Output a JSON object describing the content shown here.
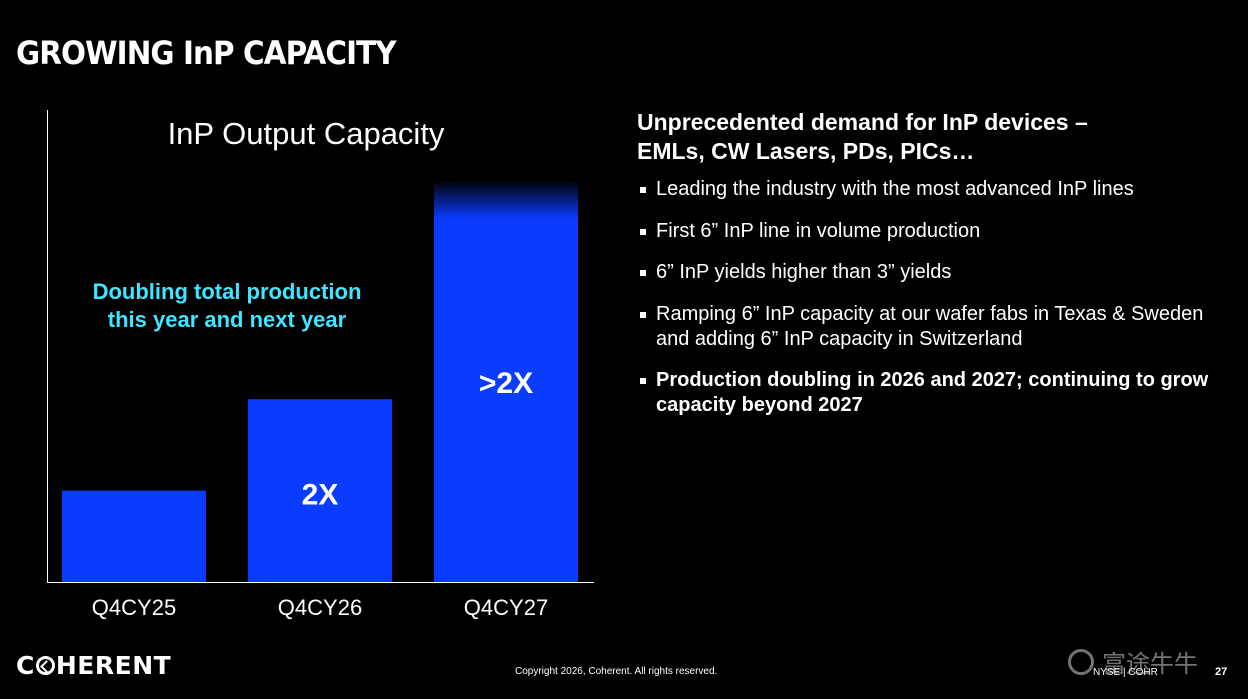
{
  "slide": {
    "title": "GROWING InP CAPACITY",
    "heading_line1": "Unprecedented demand for InP devices –",
    "heading_line2": "EMLs, CW Lasers, PDs, PICs…",
    "bullets": [
      {
        "text": "Leading the industry with the most advanced InP lines",
        "bold": false
      },
      {
        "text": "First 6” InP line in volume production",
        "bold": false
      },
      {
        "text": "6” InP yields higher than 3” yields",
        "bold": false
      },
      {
        "text": "Ramping 6”  InP capacity at our wafer fabs in Texas & Sweden and adding 6” InP capacity in Switzerland",
        "bold": false
      },
      {
        "text": "Production doubling in 2026 and 2027; continuing to grow capacity beyond 2027",
        "bold": true
      }
    ]
  },
  "footer": {
    "logo": "COHERENT",
    "copyright": "Copyright 2026, Coherent. All rights reserved.",
    "ticker": "NYSE | COHR",
    "page": "27",
    "watermark": "富途牛牛"
  },
  "colors": {
    "bar": "#0a3cff",
    "annotation": "#3ee6ff",
    "axis": "#ffffff",
    "background": "#000000"
  },
  "chart_data": {
    "type": "bar",
    "title": "InP Output Capacity",
    "categories": [
      "Q4CY25",
      "Q4CY26",
      "Q4CY27"
    ],
    "values": [
      1,
      2,
      4.4
    ],
    "data_labels": [
      "",
      "2X",
      ">2X"
    ],
    "annotation_line1": "Doubling total production",
    "annotation_line2": "this year and next year",
    "xlabel": "",
    "ylabel": "",
    "grid": false,
    "last_bar_fades_at_top": true
  }
}
